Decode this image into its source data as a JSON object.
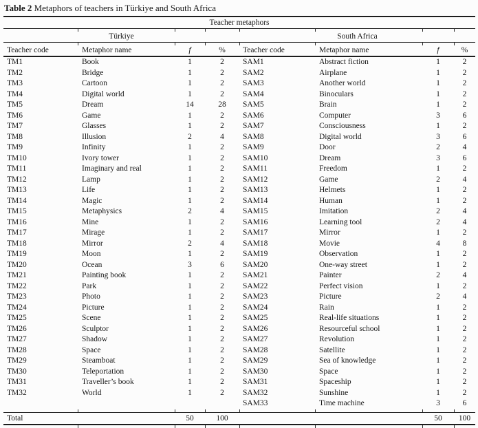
{
  "title": {
    "label": "Table 2",
    "text": "Metaphors of teachers in Türkiye and South Africa"
  },
  "table": {
    "group_header": "Teacher metaphors",
    "regions": [
      "Türkiye",
      "South Africa"
    ],
    "columns": [
      "Teacher code",
      "Metaphor name",
      "f",
      "%"
    ],
    "turkiye_rows": [
      [
        "TM1",
        "Book",
        "1",
        "2"
      ],
      [
        "TM2",
        "Bridge",
        "1",
        "2"
      ],
      [
        "TM3",
        "Cartoon",
        "1",
        "2"
      ],
      [
        "TM4",
        "Digital world",
        "1",
        "2"
      ],
      [
        "TM5",
        "Dream",
        "14",
        "28"
      ],
      [
        "TM6",
        "Game",
        "1",
        "2"
      ],
      [
        "TM7",
        "Glasses",
        "1",
        "2"
      ],
      [
        "TM8",
        "Illusion",
        "2",
        "4"
      ],
      [
        "TM9",
        "Infinity",
        "1",
        "2"
      ],
      [
        "TM10",
        "Ivory tower",
        "1",
        "2"
      ],
      [
        "TM11",
        "Imaginary and real",
        "1",
        "2"
      ],
      [
        "TM12",
        "Lamp",
        "1",
        "2"
      ],
      [
        "TM13",
        "Life",
        "1",
        "2"
      ],
      [
        "TM14",
        "Magic",
        "1",
        "2"
      ],
      [
        "TM15",
        "Metaphysics",
        "2",
        "4"
      ],
      [
        "TM16",
        "Mine",
        "1",
        "2"
      ],
      [
        "TM17",
        "Mirage",
        "1",
        "2"
      ],
      [
        "TM18",
        "Mirror",
        "2",
        "4"
      ],
      [
        "TM19",
        "Moon",
        "1",
        "2"
      ],
      [
        "TM20",
        "Ocean",
        "3",
        "6"
      ],
      [
        "TM21",
        "Painting book",
        "1",
        "2"
      ],
      [
        "TM22",
        "Park",
        "1",
        "2"
      ],
      [
        "TM23",
        "Photo",
        "1",
        "2"
      ],
      [
        "TM24",
        "Picture",
        "1",
        "2"
      ],
      [
        "TM25",
        "Scene",
        "1",
        "2"
      ],
      [
        "TM26",
        "Sculptor",
        "1",
        "2"
      ],
      [
        "TM27",
        "Shadow",
        "1",
        "2"
      ],
      [
        "TM28",
        "Space",
        "1",
        "2"
      ],
      [
        "TM29",
        "Steamboat",
        "1",
        "2"
      ],
      [
        "TM30",
        "Teleportation",
        "1",
        "2"
      ],
      [
        "TM31",
        "Traveller’s book",
        "1",
        "2"
      ],
      [
        "TM32",
        "World",
        "1",
        "2"
      ]
    ],
    "south_africa_rows": [
      [
        "SAM1",
        "Abstract fiction",
        "1",
        "2"
      ],
      [
        "SAM2",
        "Airplane",
        "1",
        "2"
      ],
      [
        "SAM3",
        "Another world",
        "1",
        "2"
      ],
      [
        "SAM4",
        "Binoculars",
        "1",
        "2"
      ],
      [
        "SAM5",
        "Brain",
        "1",
        "2"
      ],
      [
        "SAM6",
        "Computer",
        "3",
        "6"
      ],
      [
        "SAM7",
        "Consciousness",
        "1",
        "2"
      ],
      [
        "SAM8",
        "Digital world",
        "3",
        "6"
      ],
      [
        "SAM9",
        "Door",
        "2",
        "4"
      ],
      [
        "SAM10",
        "Dream",
        "3",
        "6"
      ],
      [
        "SAM11",
        "Freedom",
        "1",
        "2"
      ],
      [
        "SAM12",
        "Game",
        "2",
        "4"
      ],
      [
        "SAM13",
        "Helmets",
        "1",
        "2"
      ],
      [
        "SAM14",
        "Human",
        "1",
        "2"
      ],
      [
        "SAM15",
        "Imitation",
        "2",
        "4"
      ],
      [
        "SAM16",
        "Learning tool",
        "2",
        "4"
      ],
      [
        "SAM17",
        "Mirror",
        "1",
        "2"
      ],
      [
        "SAM18",
        "Movie",
        "4",
        "8"
      ],
      [
        "SAM19",
        "Observation",
        "1",
        "2"
      ],
      [
        "SAM20",
        "One-way street",
        "1",
        "2"
      ],
      [
        "SAM21",
        "Painter",
        "2",
        "4"
      ],
      [
        "SAM22",
        "Perfect vision",
        "1",
        "2"
      ],
      [
        "SAM23",
        "Picture",
        "2",
        "4"
      ],
      [
        "SAM24",
        "Rain",
        "1",
        "2"
      ],
      [
        "SAM25",
        "Real-life situations",
        "1",
        "2"
      ],
      [
        "SAM26",
        "Resourceful school",
        "1",
        "2"
      ],
      [
        "SAM27",
        "Revolution",
        "1",
        "2"
      ],
      [
        "SAM28",
        "Satellite",
        "1",
        "2"
      ],
      [
        "SAM29",
        "Sea of knowledge",
        "1",
        "2"
      ],
      [
        "SAM30",
        "Space",
        "1",
        "2"
      ],
      [
        "SAM31",
        "Spaceship",
        "1",
        "2"
      ],
      [
        "SAM32",
        "Sunshine",
        "1",
        "2"
      ],
      [
        "SAM33",
        "Time machine",
        "3",
        "6"
      ]
    ],
    "total": {
      "label": "Total",
      "turkiye_f": "50",
      "turkiye_pct": "100",
      "sa_f": "50",
      "sa_pct": "100"
    }
  }
}
